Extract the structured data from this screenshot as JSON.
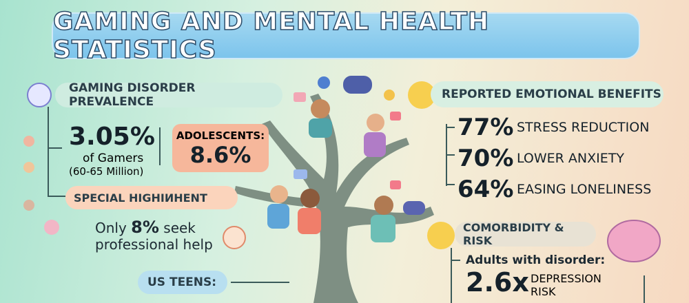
{
  "header": {
    "title": "GAMING AND MENTAL HEALTH STATISTICS"
  },
  "prevalence": {
    "heading": "GAMING DISORDER PREVALENCE",
    "value": "3.05%",
    "line1": "of Gamers",
    "line2": "(60-65 Million)",
    "adolescents_label": "ADOLESCENTS:",
    "adolescents_value": "8.6%"
  },
  "highlight": {
    "heading": "SPECIAL HIGHIИHENT",
    "prefix": "Only",
    "value": "8%",
    "suffix": "seek",
    "line2": "professional help"
  },
  "teens": {
    "heading": "US TEENS:"
  },
  "benefits": {
    "heading": "REPORTED EMOTIONAL BENEFITS",
    "items": [
      {
        "value": "77%",
        "label": "STRESS REDUCTION"
      },
      {
        "value": "70%",
        "label": "LOWER ANXIETY"
      },
      {
        "value": "64%",
        "label": "EASING LONELINESS"
      }
    ]
  },
  "comorbidity": {
    "heading": "COMORBIDITY & RISK",
    "line1": "Adults with disorder:",
    "value": "2.6x",
    "label1": "DEPRESSION",
    "label2": "RISK"
  }
}
